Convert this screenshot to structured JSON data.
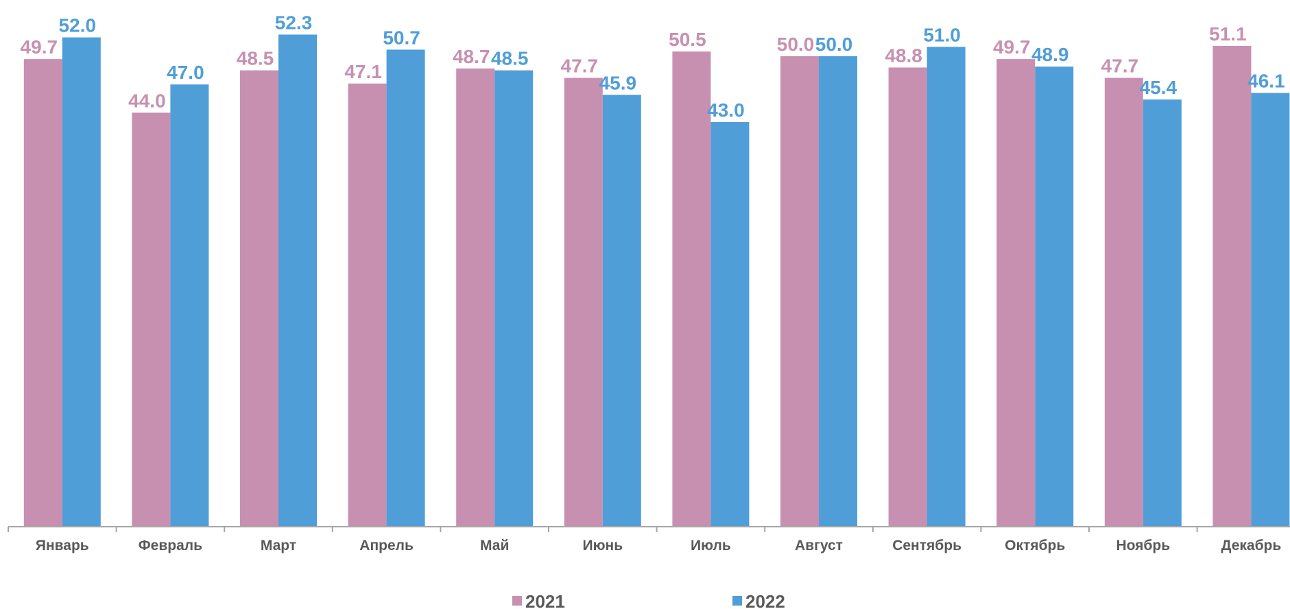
{
  "chart_data": {
    "type": "bar",
    "categories": [
      "Январь",
      "Февраль",
      "Март",
      "Апрель",
      "Май",
      "Июнь",
      "Июль",
      "Август",
      "Сентябрь",
      "Октябрь",
      "Ноябрь",
      "Декабрь"
    ],
    "series": [
      {
        "name": "2021",
        "color": "#c890b0",
        "values": [
          49.7,
          44.0,
          48.5,
          47.1,
          48.7,
          47.7,
          50.5,
          50.0,
          48.8,
          49.7,
          47.7,
          51.1
        ],
        "labels": [
          "49.7",
          "44.0",
          "48.5",
          "47.1",
          "48.7",
          "47.7",
          "50.5",
          "50.0",
          "48.8",
          "49.7",
          "47.7",
          "51.1"
        ]
      },
      {
        "name": "2022",
        "color": "#509ed8",
        "values": [
          52.0,
          47.0,
          52.3,
          50.7,
          48.5,
          45.9,
          43.0,
          50.0,
          51.0,
          48.9,
          45.4,
          46.1
        ],
        "labels": [
          "52.0",
          "47.0",
          "52.3",
          "50.7",
          "48.5",
          "45.9",
          "43.0",
          "50.0",
          "51.0",
          "48.9",
          "45.4",
          "46.1"
        ]
      }
    ],
    "title": "",
    "xlabel": "",
    "ylabel": "",
    "ylim": [
      0,
      52.3
    ],
    "grid": false,
    "legend_position": "bottom",
    "axis_color": "#a6a6a6",
    "tick_label_color": "#595959"
  }
}
